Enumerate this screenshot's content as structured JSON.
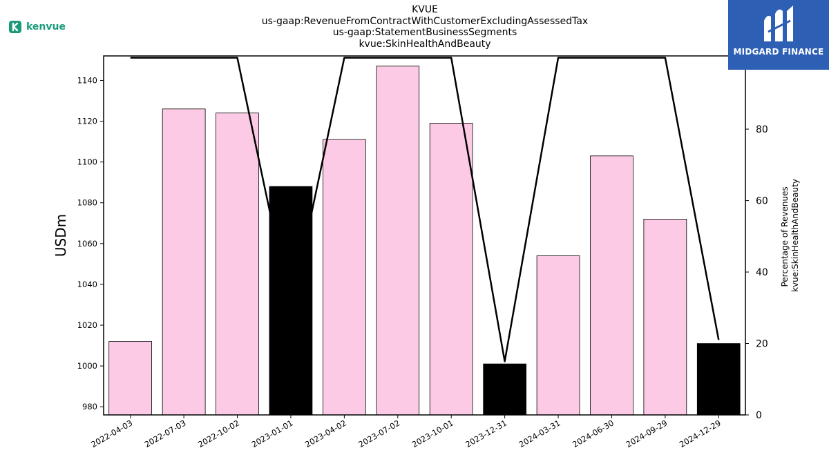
{
  "header": {
    "title_lines": [
      "KVUE",
      "us-gaap:RevenueFromContractWithCustomerExcludingAssessedTax",
      "us-gaap:StatementBusinessSegments",
      "kvue:SkinHealthAndBeauty"
    ]
  },
  "logo": {
    "text": "kenvue",
    "icon": "kenvue-k-icon",
    "color": "#1a9a7a"
  },
  "badge": {
    "text": "MIDGARD FINANCE",
    "icon": "midgard-m-icon",
    "color": "#2d5fb5"
  },
  "chart_data": {
    "type": "bar",
    "categories": [
      "2022-04-03",
      "2022-07-03",
      "2022-10-02",
      "2023-01-01",
      "2023-04-02",
      "2023-07-02",
      "2023-10-01",
      "2023-12-31",
      "2024-03-31",
      "2024-06-30",
      "2024-09-29",
      "2024-12-29"
    ],
    "series": [
      {
        "type": "bar",
        "values": [
          1012,
          1126,
          1124,
          1088,
          1111,
          1147,
          1119,
          1001,
          1054,
          1103,
          1072,
          1011
        ],
        "colors": [
          "#fccae4",
          "#fccae4",
          "#fccae4",
          "#000000",
          "#fccae4",
          "#fccae4",
          "#fccae4",
          "#000000",
          "#fccae4",
          "#fccae4",
          "#fccae4",
          "#000000"
        ]
      },
      {
        "type": "line",
        "axis": "right",
        "values": [
          100,
          100,
          100,
          29,
          100,
          100,
          100,
          15,
          100,
          100,
          100,
          21
        ],
        "color": "#000000"
      }
    ],
    "ylabel": "USDm",
    "y2label_lines": [
      "Percentage of Revenues",
      "kvue:SkinHealthAndBeauty"
    ],
    "ylim": [
      976,
      1152
    ],
    "yticks": [
      980,
      1000,
      1020,
      1040,
      1060,
      1080,
      1100,
      1120,
      1140
    ],
    "y2lim": [
      0,
      100.5
    ],
    "y2ticks": [
      0,
      20,
      40,
      60,
      80,
      100
    ],
    "grid": false
  }
}
